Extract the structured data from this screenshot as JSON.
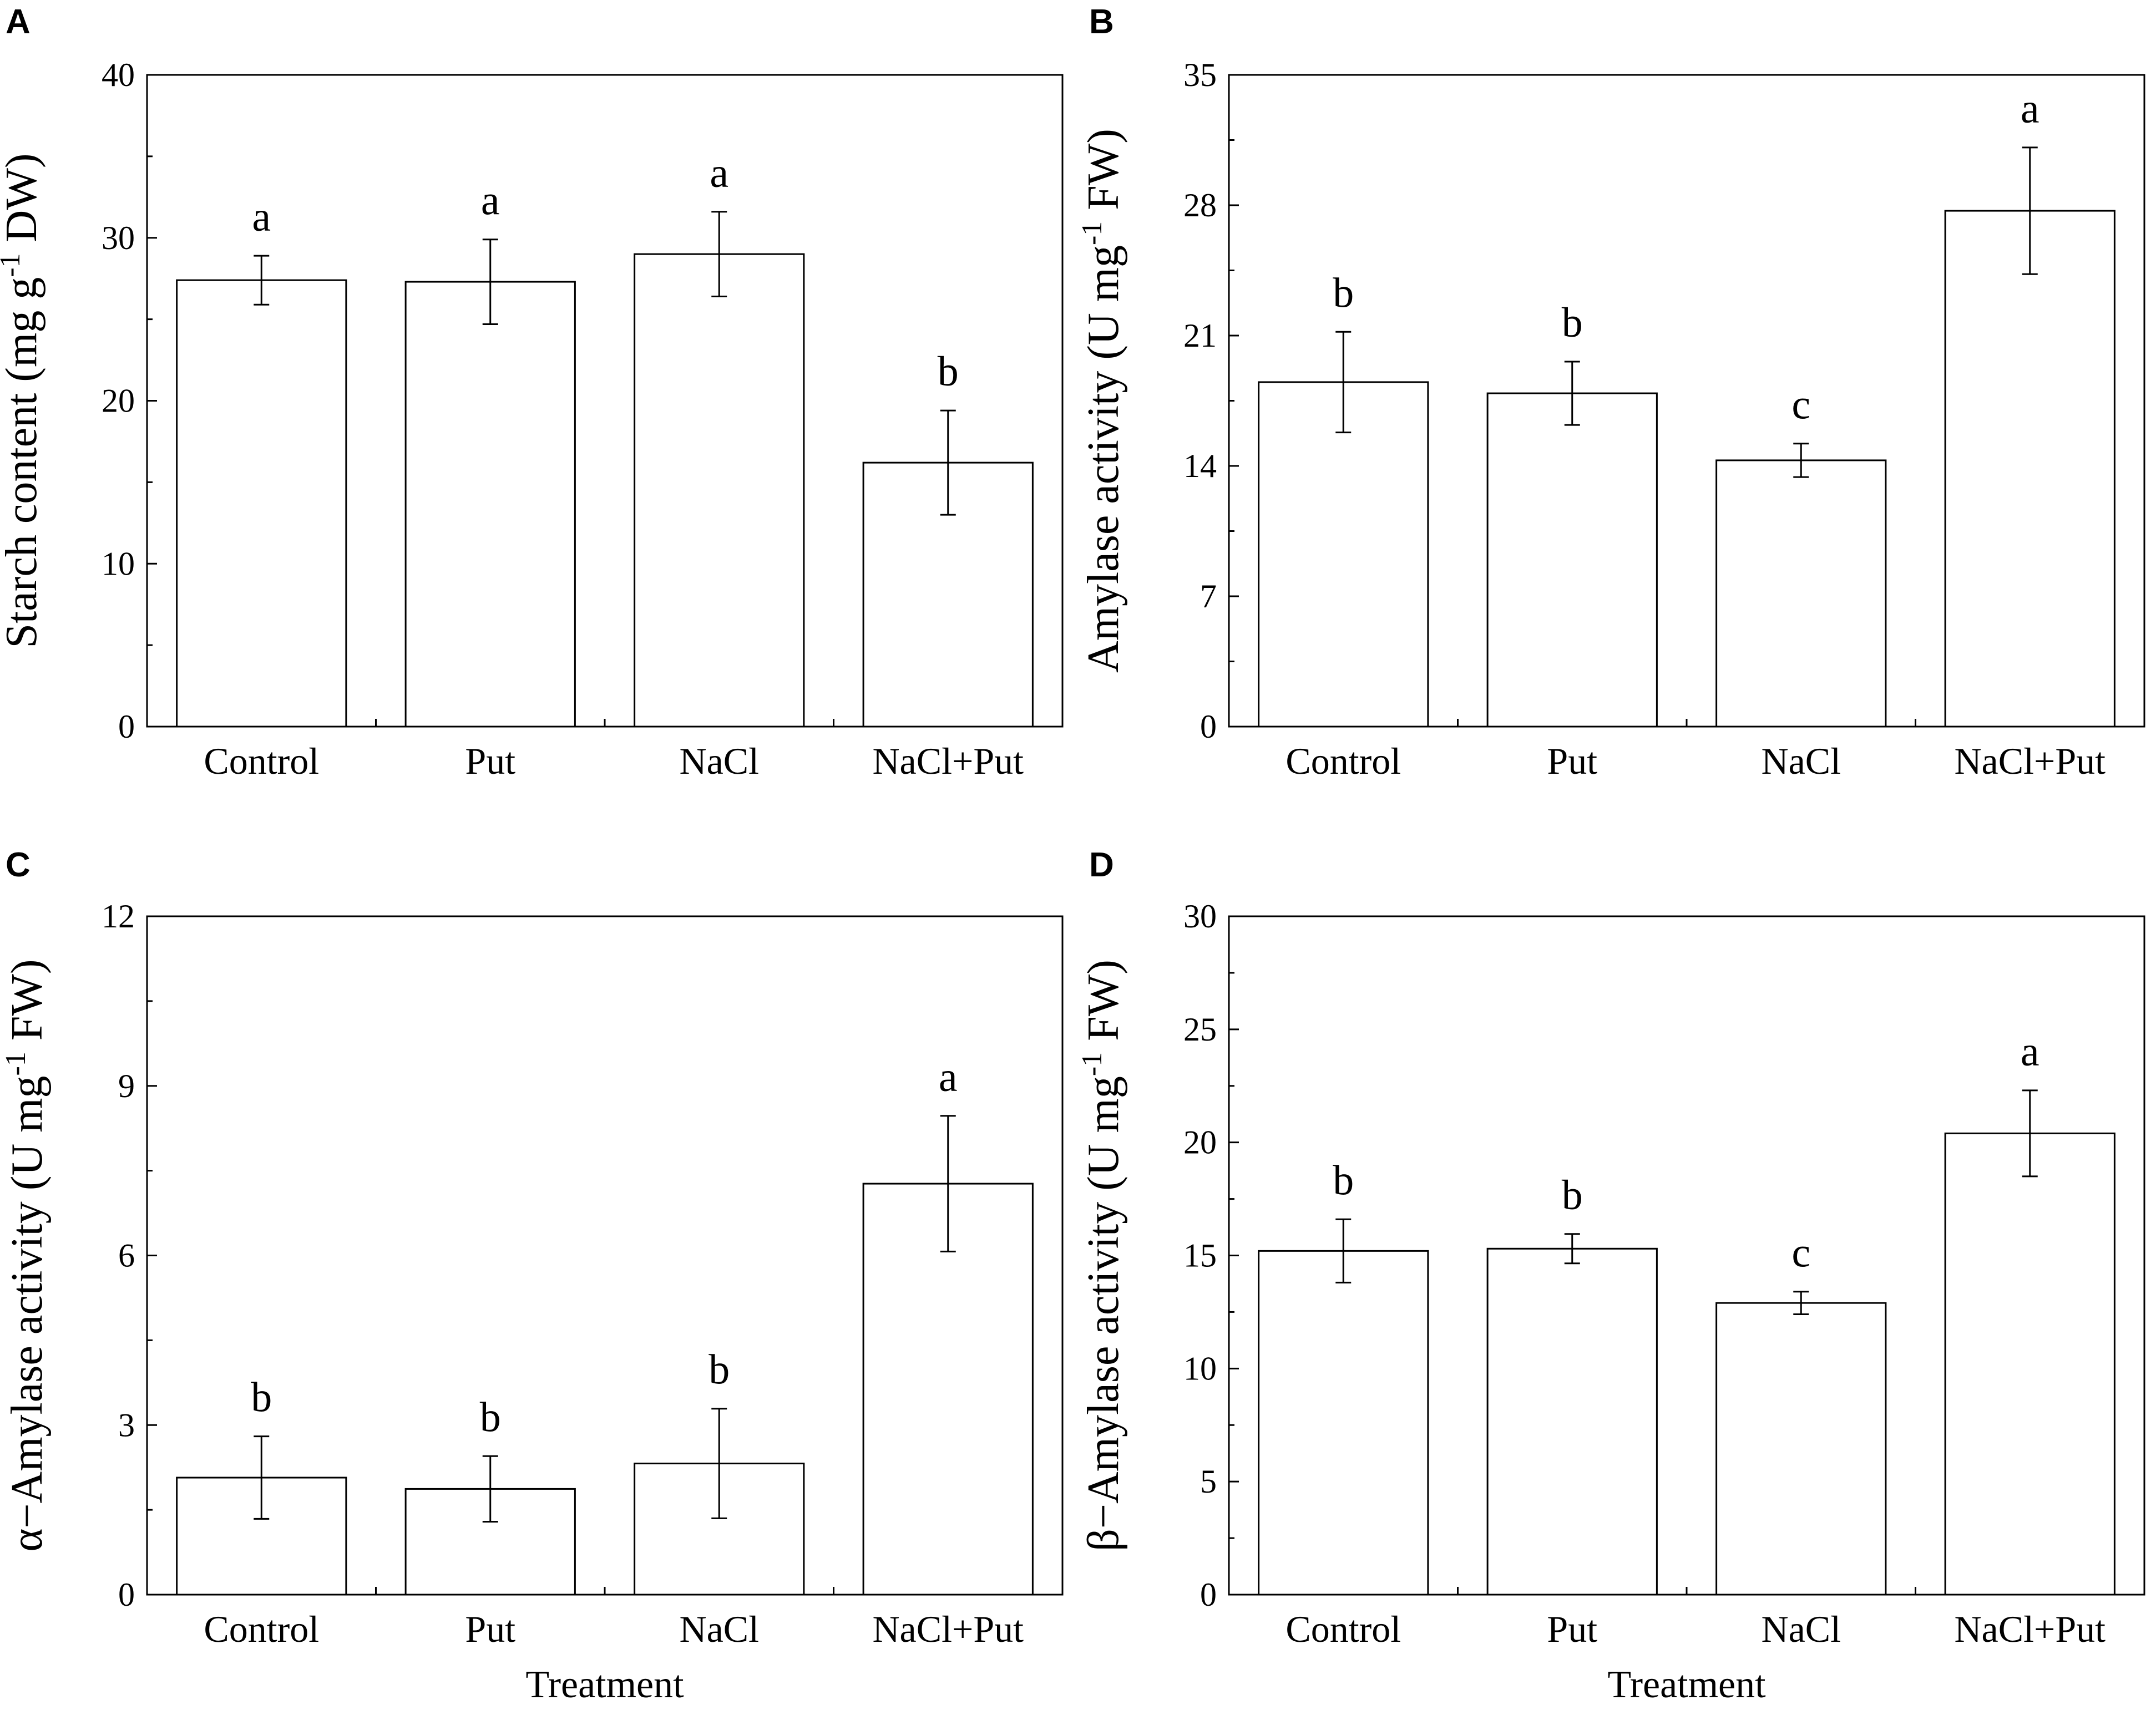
{
  "chart_data": [
    {
      "type": "bar",
      "panel": "A",
      "categories": [
        "Control",
        "Put",
        "NaCl",
        "NaCl+Put"
      ],
      "values": [
        27.4,
        27.3,
        29.0,
        16.2
      ],
      "errors": [
        1.5,
        2.6,
        2.6,
        3.2
      ],
      "letters": [
        "a",
        "a",
        "a",
        "b"
      ],
      "ylabel": "Starch content (mg g",
      "ylabel_sup": "-1",
      "ylabel_end": " DW)",
      "ylim": [
        0,
        40
      ],
      "yticks": [
        "0",
        "10",
        "20",
        "30",
        "40"
      ],
      "xlabel": ""
    },
    {
      "type": "bar",
      "panel": "B",
      "categories": [
        "Control",
        "Put",
        "NaCl",
        "NaCl+Put"
      ],
      "values": [
        18.5,
        17.9,
        14.3,
        27.7
      ],
      "errors": [
        2.7,
        1.7,
        0.9,
        3.4
      ],
      "letters": [
        "b",
        "b",
        "c",
        "a"
      ],
      "ylabel": "Amylase activity (U mg",
      "ylabel_sup": "-1",
      "ylabel_end": " FW)",
      "ylim": [
        0,
        35
      ],
      "yticks": [
        "0",
        "7",
        "14",
        "21",
        "28",
        "35"
      ],
      "xlabel": ""
    },
    {
      "type": "bar",
      "panel": "C",
      "categories": [
        "Control",
        "Put",
        "NaCl",
        "NaCl+Put"
      ],
      "values": [
        2.07,
        1.87,
        2.32,
        7.27
      ],
      "errors": [
        0.73,
        0.58,
        0.97,
        1.2
      ],
      "letters": [
        "b",
        "b",
        "b",
        "a"
      ],
      "ylabel": "α−Amylase activity (U mg",
      "ylabel_sup": "-1",
      "ylabel_end": " FW)",
      "ylim": [
        0,
        12
      ],
      "yticks": [
        "0",
        "3",
        "6",
        "9",
        "12"
      ],
      "xlabel": "Treatment"
    },
    {
      "type": "bar",
      "panel": "D",
      "categories": [
        "Control",
        "Put",
        "NaCl",
        "NaCl+Put"
      ],
      "values": [
        15.2,
        15.3,
        12.9,
        20.4
      ],
      "errors": [
        1.4,
        0.65,
        0.5,
        1.9
      ],
      "letters": [
        "b",
        "b",
        "c",
        "a"
      ],
      "ylabel": "β−Amylase activity (U mg",
      "ylabel_sup": "-1",
      "ylabel_end": " FW)",
      "ylim": [
        0,
        30
      ],
      "yticks": [
        "0",
        "5",
        "10",
        "15",
        "20",
        "25",
        "30"
      ],
      "xlabel": "Treatment"
    }
  ]
}
